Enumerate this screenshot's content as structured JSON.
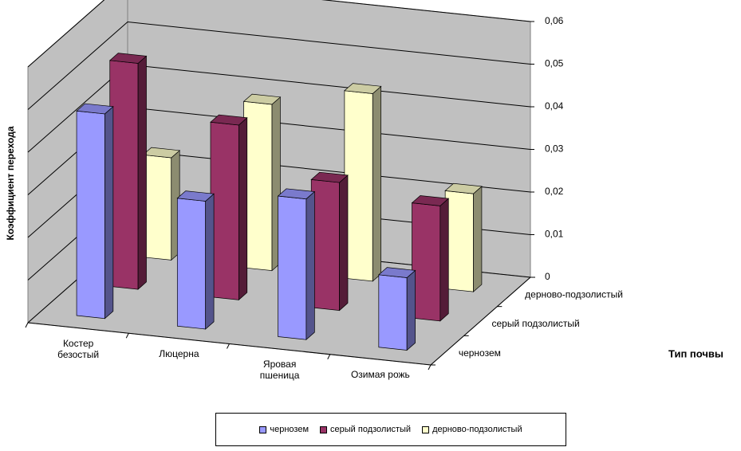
{
  "chart_data": {
    "type": "bar3d",
    "y_label": "Коэффициент перехода",
    "z_label": "Тип почвы",
    "categories": [
      "Костер безостый",
      "Люцерна",
      "Яровая пшеница",
      "Озимая рожь"
    ],
    "series": [
      {
        "name": "чернозем",
        "color": "#9999ff",
        "values": [
          0.048,
          0.03,
          0.033,
          0.017
        ]
      },
      {
        "name": "серый подзолистый",
        "color": "#993366",
        "values": [
          0.053,
          0.041,
          0.03,
          0.027
        ]
      },
      {
        "name": "дерново-подзолистый",
        "color": "#ffffcc",
        "values": [
          0.024,
          0.039,
          0.044,
          0.023
        ]
      }
    ],
    "ylim": [
      0,
      0.06
    ],
    "yticks": [
      0,
      {
        "value": 0.01,
        "label": "0,01"
      },
      {
        "value": 0.02,
        "label": "0,02"
      },
      {
        "value": 0.03,
        "label": "0,03"
      },
      {
        "value": 0.04,
        "label": "0,04"
      },
      {
        "value": 0.05,
        "label": "0,05"
      },
      {
        "value": 0.06,
        "label": "0,06"
      }
    ],
    "grid": true,
    "legend": "bottom"
  }
}
